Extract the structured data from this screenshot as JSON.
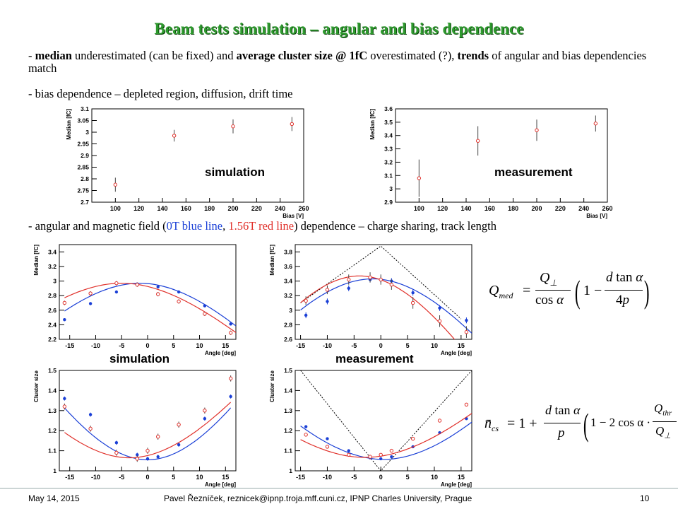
{
  "slide": {
    "title": "Beam tests simulation – angular and bias dependence",
    "bullet1_parts": [
      "- ",
      "median",
      " underestimated (can be fixed) and ",
      "average cluster size @ 1fC",
      " overestimated (?), ",
      "trends",
      " of angular and bias dependencies match"
    ],
    "bullet2": "- bias dependence – depleted region, diffusion, drift time",
    "bullet3_parts": [
      "- angular and magnetic field (",
      "0T blue line",
      ", ",
      "1.56T red line",
      ") dependence – charge sharing, track length"
    ],
    "label_sim_top": "simulation",
    "label_meas_top": "measurement",
    "label_sim_mid": "simulation",
    "label_meas_mid": "measurement",
    "formula1": "Q_med = Q⊥/cos α · (1 − d tan α / 4p)",
    "formula2": "n̄_cs = 1 + d tan α / p · (1 − 2 cos α · Q_thr / Q⊥)"
  },
  "footer": {
    "date": "May 14, 2015",
    "author": "Pavel Řezníček, reznicek@ipnp.troja.mff.cuni.cz, IPNP Charles University, Prague",
    "page": "10"
  },
  "colors": {
    "title": "#2e9a2e",
    "blue": "#1a3fd6",
    "red": "#e0302a"
  },
  "chart_data": [
    {
      "type": "scatter",
      "id": "bias-sim",
      "xlabel": "Bias [V]",
      "ylabel": "Median [fC]",
      "xlim": [
        80,
        260
      ],
      "ylim": [
        2.7,
        3.1
      ],
      "xticks": [
        100,
        120,
        140,
        160,
        180,
        200,
        220,
        240,
        260
      ],
      "yticks": [
        2.7,
        2.75,
        2.8,
        2.85,
        2.9,
        2.95,
        3,
        3.05,
        3.1
      ],
      "series": [
        {
          "color": "red",
          "x": [
            100,
            150,
            200,
            250
          ],
          "y": [
            2.775,
            2.985,
            3.025,
            3.035
          ],
          "err": [
            0.03,
            0.025,
            0.03,
            0.03
          ]
        }
      ]
    },
    {
      "type": "scatter",
      "id": "bias-meas",
      "xlabel": "Bias [V]",
      "ylabel": "Median [fC]",
      "xlim": [
        80,
        260
      ],
      "ylim": [
        2.9,
        3.6
      ],
      "xticks": [
        100,
        120,
        140,
        160,
        180,
        200,
        220,
        240,
        260
      ],
      "yticks": [
        2.9,
        3,
        3.1,
        3.2,
        3.3,
        3.4,
        3.5,
        3.6
      ],
      "series": [
        {
          "color": "red",
          "x": [
            100,
            150,
            200,
            250
          ],
          "y": [
            3.08,
            3.36,
            3.44,
            3.49
          ],
          "err": [
            0.14,
            0.11,
            0.08,
            0.06
          ]
        }
      ]
    },
    {
      "type": "line",
      "id": "angle-median-sim",
      "xlabel": "Angle [deg]",
      "ylabel": "Median [fC]",
      "xlim": [
        -17,
        17
      ],
      "ylim": [
        2.2,
        3.5
      ],
      "xticks": [
        -15,
        -10,
        -5,
        0,
        5,
        10,
        15
      ],
      "yticks": [
        2.2,
        2.4,
        2.6,
        2.8,
        3,
        3.2,
        3.4
      ],
      "series": [
        {
          "name": "0T",
          "color": "blue",
          "x": [
            -16,
            -11,
            -6,
            -2,
            2,
            6,
            11,
            16
          ],
          "y": [
            2.47,
            2.69,
            2.85,
            2.96,
            2.92,
            2.85,
            2.66,
            2.41
          ],
          "err": [
            0.02,
            0.02,
            0.02,
            0.02,
            0.02,
            0.02,
            0.02,
            0.02
          ],
          "curve": [
            -16,
            17,
            -1.5,
            2.97,
            0.0022
          ]
        },
        {
          "name": "1.56T",
          "color": "red",
          "x": [
            -16,
            -11,
            -6,
            -2,
            2,
            6,
            11,
            16
          ],
          "y": [
            2.7,
            2.83,
            2.97,
            2.95,
            2.82,
            2.72,
            2.55,
            2.29
          ],
          "err": [
            0.03,
            0.03,
            0.03,
            0.03,
            0.03,
            0.03,
            0.03,
            0.03
          ],
          "curve": [
            -16,
            17,
            -5,
            2.97,
            0.0019
          ]
        }
      ]
    },
    {
      "type": "line",
      "id": "angle-median-meas",
      "xlabel": "Angle [deg]",
      "ylabel": "Median [fC]",
      "xlim": [
        -16,
        17
      ],
      "ylim": [
        2.6,
        3.9
      ],
      "xticks": [
        -15,
        -10,
        -5,
        0,
        5,
        10,
        15
      ],
      "yticks": [
        2.6,
        2.8,
        3,
        3.2,
        3.4,
        3.6,
        3.8
      ],
      "series": [
        {
          "name": "0T",
          "color": "blue",
          "x": [
            -14,
            -10,
            -6,
            -2,
            0,
            2,
            6,
            11,
            16
          ],
          "y": [
            2.93,
            3.12,
            3.3,
            3.42,
            3.42,
            3.4,
            3.24,
            3.03,
            2.86
          ],
          "err": [
            0.04,
            0.04,
            0.04,
            0.04,
            0.04,
            0.04,
            0.04,
            0.04,
            0.04
          ],
          "curve": [
            -15,
            17,
            -1.5,
            3.43,
            0.0028
          ]
        },
        {
          "name": "1.56T",
          "color": "red",
          "x": [
            -14,
            -10,
            -6,
            -2,
            0,
            2,
            6,
            11,
            16
          ],
          "y": [
            3.13,
            3.28,
            3.42,
            3.45,
            3.42,
            3.35,
            3.1,
            2.85,
            2.7
          ],
          "err": [
            0.06,
            0.06,
            0.07,
            0.07,
            0.07,
            0.07,
            0.08,
            0.08,
            0.08
          ],
          "curve": [
            -15,
            17,
            -4,
            3.47,
            0.0035
          ]
        }
      ],
      "envelope": {
        "x": [
          -15,
          0,
          15
        ],
        "y": [
          3.1,
          3.88,
          2.88
        ]
      }
    },
    {
      "type": "line",
      "id": "angle-cluster-sim",
      "xlabel": "Angle [deg]",
      "ylabel": "Cluster size",
      "xlim": [
        -17,
        17
      ],
      "ylim": [
        1,
        1.5
      ],
      "xticks": [
        -15,
        -10,
        -5,
        0,
        5,
        10,
        15
      ],
      "yticks": [
        1,
        1.1,
        1.2,
        1.3,
        1.4,
        1.5
      ],
      "series": [
        {
          "name": "0T",
          "color": "blue",
          "x": [
            -16,
            -11,
            -6,
            -2,
            0,
            2,
            6,
            11,
            16
          ],
          "y": [
            1.36,
            1.28,
            1.14,
            1.08,
            1.06,
            1.07,
            1.13,
            1.26,
            1.37
          ],
          "err": [
            0.01,
            0.01,
            0.01,
            0.01,
            0.01,
            0.01,
            0.01,
            0.01,
            0.01
          ],
          "curve": [
            -16,
            16,
            0,
            1.055,
            0.00125
          ]
        },
        {
          "name": "1.56T",
          "color": "red",
          "x": [
            -16,
            -11,
            -6,
            -2,
            0,
            2,
            6,
            11,
            16
          ],
          "y": [
            1.32,
            1.21,
            1.09,
            1.06,
            1.1,
            1.17,
            1.23,
            1.3,
            1.46
          ],
          "err": [
            0.015,
            0.015,
            0.015,
            0.015,
            0.015,
            0.015,
            0.015,
            0.015,
            0.015
          ],
          "curve": [
            -16,
            16,
            -3.5,
            1.065,
            0.00095
          ]
        }
      ]
    },
    {
      "type": "line",
      "id": "angle-cluster-meas",
      "xlabel": "Angle [deg]",
      "ylabel": "Cluster size",
      "xlim": [
        -16,
        17
      ],
      "ylim": [
        1,
        1.5
      ],
      "xticks": [
        -15,
        -10,
        -5,
        0,
        5,
        10,
        15
      ],
      "yticks": [
        1,
        1.1,
        1.2,
        1.3,
        1.4,
        1.5
      ],
      "series": [
        {
          "name": "0T",
          "color": "blue",
          "x": [
            -14,
            -10,
            -6,
            -2,
            0,
            2,
            6,
            11,
            16
          ],
          "y": [
            1.22,
            1.16,
            1.1,
            1.065,
            1.06,
            1.07,
            1.12,
            1.19,
            1.26
          ],
          "err": [
            0.006,
            0.006,
            0.006,
            0.006,
            0.006,
            0.006,
            0.006,
            0.006,
            0.006
          ],
          "curve": [
            -15,
            17,
            0.5,
            1.057,
            0.00085
          ]
        },
        {
          "name": "1.56T",
          "color": "red",
          "x": [
            -14,
            -10,
            -6,
            -2,
            0,
            2,
            6,
            11,
            16
          ],
          "y": [
            1.18,
            1.12,
            1.08,
            1.07,
            1.08,
            1.1,
            1.16,
            1.25,
            1.33
          ],
          "err": [
            0.006,
            0.006,
            0.006,
            0.006,
            0.006,
            0.006,
            0.006,
            0.006,
            0.006
          ],
          "curve": [
            -15,
            17,
            -3,
            1.067,
            0.00072
          ]
        }
      ],
      "envelope": {
        "x": [
          -15,
          0,
          17
        ],
        "y": [
          1.5,
          1.0,
          1.5
        ]
      }
    }
  ]
}
